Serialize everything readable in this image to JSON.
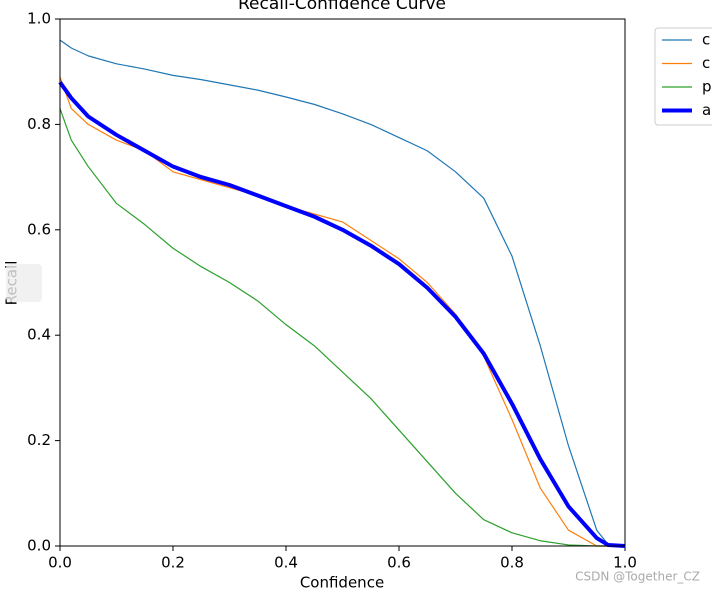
{
  "chart_data": {
    "type": "line",
    "title": "Recall-Confidence Curve",
    "xlabel": "Confidence",
    "ylabel": "Recall",
    "x": [
      0,
      0.02,
      0.05,
      0.1,
      0.15,
      0.2,
      0.25,
      0.3,
      0.35,
      0.4,
      0.45,
      0.5,
      0.55,
      0.6,
      0.65,
      0.7,
      0.75,
      0.8,
      0.85,
      0.9,
      0.95,
      0.97,
      1.0
    ],
    "series": [
      {
        "name": "c",
        "color": "#1f77b4",
        "linewidth": 1.2,
        "values": [
          0.96,
          0.945,
          0.93,
          0.915,
          0.905,
          0.893,
          0.885,
          0.875,
          0.865,
          0.852,
          0.838,
          0.82,
          0.8,
          0.775,
          0.75,
          0.71,
          0.66,
          0.55,
          0.38,
          0.19,
          0.03,
          0.003,
          0
        ]
      },
      {
        "name": "c",
        "color": "#ff7f0e",
        "linewidth": 1.2,
        "values": [
          0.89,
          0.83,
          0.8,
          0.77,
          0.75,
          0.71,
          0.695,
          0.68,
          0.665,
          0.645,
          0.63,
          0.615,
          0.58,
          0.545,
          0.5,
          0.44,
          0.36,
          0.24,
          0.11,
          0.03,
          0,
          0,
          0
        ]
      },
      {
        "name": "p",
        "color": "#2ca02c",
        "linewidth": 1.2,
        "values": [
          0.83,
          0.77,
          0.72,
          0.65,
          0.61,
          0.565,
          0.53,
          0.5,
          0.465,
          0.42,
          0.38,
          0.33,
          0.28,
          0.22,
          0.16,
          0.1,
          0.05,
          0.025,
          0.01,
          0.002,
          0,
          0,
          0
        ]
      },
      {
        "name": "a",
        "color": "#0000ff",
        "linewidth": 4,
        "values": [
          0.88,
          0.85,
          0.815,
          0.78,
          0.75,
          0.72,
          0.7,
          0.685,
          0.665,
          0.645,
          0.625,
          0.6,
          0.57,
          0.535,
          0.49,
          0.435,
          0.365,
          0.27,
          0.165,
          0.075,
          0.015,
          0.002,
          0
        ]
      }
    ],
    "xlim": [
      0,
      1
    ],
    "ylim": [
      0,
      1
    ],
    "xticks": [
      {
        "value": 0,
        "label": "0.0"
      },
      0.2,
      0.4,
      0.6,
      0.8,
      {
        "value": 1,
        "label": "1.0"
      }
    ],
    "yticks": [
      {
        "value": 0,
        "label": "0.0"
      },
      0.2,
      0.4,
      0.6,
      0.8,
      {
        "value": 1,
        "label": "1.0"
      }
    ],
    "grid": false,
    "legend": "outside right"
  },
  "watermark": "CSDN @Together_CZ"
}
